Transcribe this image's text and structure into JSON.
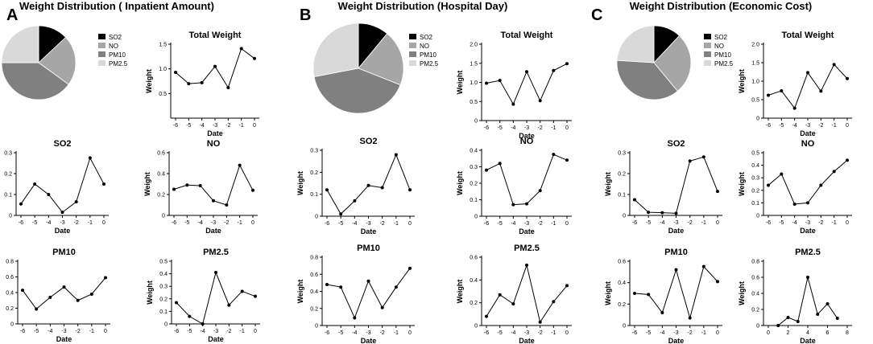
{
  "panels": [
    {
      "letter": "A",
      "title": "Weight Distribution ( Inpatient Amount)",
      "charts": [
        {
          "type": "pie",
          "labels": [
            "SO2",
            "NO",
            "PM10",
            "PM2.5"
          ],
          "values": [
            13,
            22,
            40,
            25
          ],
          "colors": [
            "#000000",
            "#a6a6a6",
            "#808080",
            "#d9d9d9"
          ]
        },
        {
          "type": "line",
          "title": "Total Weight",
          "xlabel": "Date",
          "ylabel": "Weight",
          "x": [
            -6,
            -5,
            -4,
            -3,
            -2,
            -1,
            0
          ],
          "y": [
            0.93,
            0.7,
            0.72,
            1.05,
            0.62,
            1.41,
            1.21
          ],
          "ylim": [
            0,
            1.5
          ],
          "yticks": [
            0.5,
            1.0,
            1.5
          ],
          "xticks": [
            -6,
            -5,
            -4,
            -3,
            -2,
            -1,
            0
          ]
        },
        {
          "type": "line",
          "title": "SO2",
          "xlabel": "Date",
          "ylabel": "Weight",
          "x": [
            -6,
            -5,
            -4,
            -3,
            -2,
            -1,
            0
          ],
          "y": [
            0.055,
            0.15,
            0.1,
            0.015,
            0.065,
            0.275,
            0.15
          ],
          "ylim": [
            0,
            0.3
          ],
          "yticks": [
            0.0,
            0.1,
            0.2,
            0.3
          ],
          "xticks": [
            -6,
            -5,
            -4,
            -3,
            -2,
            -1,
            0
          ]
        },
        {
          "type": "line",
          "title": "NO",
          "xlabel": "Date",
          "ylabel": "Weight",
          "x": [
            -6,
            -5,
            -4,
            -3,
            -2,
            -1,
            0
          ],
          "y": [
            0.25,
            0.29,
            0.285,
            0.14,
            0.1,
            0.48,
            0.24
          ],
          "ylim": [
            0,
            0.6
          ],
          "yticks": [
            0.0,
            0.2,
            0.4,
            0.6
          ],
          "xticks": [
            -6,
            -5,
            -4,
            -3,
            -2,
            -1,
            0
          ]
        },
        {
          "type": "line",
          "title": "PM10",
          "xlabel": "Date",
          "ylabel": "Weight",
          "x": [
            -6,
            -5,
            -4,
            -3,
            -2,
            -1,
            0
          ],
          "y": [
            0.43,
            0.19,
            0.34,
            0.47,
            0.3,
            0.38,
            0.59
          ],
          "ylim": [
            0,
            0.8
          ],
          "yticks": [
            0.0,
            0.2,
            0.4,
            0.6,
            0.8
          ],
          "xticks": [
            -6,
            -5,
            -4,
            -3,
            -2,
            -1,
            0
          ]
        },
        {
          "type": "line",
          "title": "PM2.5",
          "xlabel": "Date",
          "ylabel": "Weight",
          "x": [
            -6,
            -5,
            -4,
            -3,
            -2,
            -1,
            0
          ],
          "y": [
            0.17,
            0.06,
            0.0,
            0.41,
            0.15,
            0.26,
            0.22
          ],
          "ylim": [
            0,
            0.5
          ],
          "yticks": [
            0.0,
            0.1,
            0.2,
            0.3,
            0.4,
            0.5
          ],
          "xticks": [
            -6,
            -5,
            -4,
            -3,
            -2,
            -1,
            0
          ]
        }
      ]
    },
    {
      "letter": "B",
      "title": "Weight Distribution (Hospital Day)",
      "charts": [
        {
          "type": "pie",
          "labels": [
            "SO2",
            "NO",
            "PM10",
            "PM2.5"
          ],
          "values": [
            11,
            20,
            41,
            28
          ],
          "colors": [
            "#000000",
            "#a6a6a6",
            "#808080",
            "#d9d9d9"
          ]
        },
        {
          "type": "line",
          "title": "Total Weight",
          "xlabel": "Date",
          "ylabel": "Weight",
          "x": [
            -6,
            -5,
            -4,
            -3,
            -2,
            -1,
            0
          ],
          "y": [
            0.98,
            1.05,
            0.43,
            1.28,
            0.52,
            1.31,
            1.49
          ],
          "ylim": [
            0,
            2.0
          ],
          "yticks": [
            0.0,
            0.5,
            1.0,
            1.5,
            2.0
          ],
          "xticks": [
            -6,
            -5,
            -4,
            -3,
            -2,
            -1,
            0
          ]
        },
        {
          "type": "line",
          "title": "SO2",
          "xlabel": "Date",
          "ylabel": "Weight",
          "x": [
            -6,
            -5,
            -4,
            -3,
            -2,
            -1,
            0
          ],
          "y": [
            0.12,
            0.01,
            0.07,
            0.14,
            0.13,
            0.28,
            0.12
          ],
          "ylim": [
            0,
            0.3
          ],
          "yticks": [
            0.0,
            0.1,
            0.2,
            0.3
          ],
          "xticks": [
            -6,
            -5,
            -4,
            -3,
            -2,
            -1,
            0
          ]
        },
        {
          "type": "line",
          "title": "NO",
          "xlabel": "Date",
          "ylabel": "Weight",
          "x": [
            -6,
            -5,
            -4,
            -3,
            -2,
            -1,
            0
          ],
          "y": [
            0.28,
            0.32,
            0.07,
            0.075,
            0.155,
            0.375,
            0.34
          ],
          "ylim": [
            0,
            0.4
          ],
          "yticks": [
            0.0,
            0.1,
            0.2,
            0.3,
            0.4
          ],
          "xticks": [
            -6,
            -5,
            -4,
            -3,
            -2,
            -1,
            0
          ]
        },
        {
          "type": "line",
          "title": "PM10",
          "xlabel": "Date",
          "ylabel": "Weight",
          "x": [
            -6,
            -5,
            -4,
            -3,
            -2,
            -1,
            0
          ],
          "y": [
            0.48,
            0.45,
            0.09,
            0.52,
            0.21,
            0.45,
            0.67
          ],
          "ylim": [
            0,
            0.8
          ],
          "yticks": [
            0.0,
            0.2,
            0.4,
            0.6,
            0.8
          ],
          "xticks": [
            -6,
            -5,
            -4,
            -3,
            -2,
            -1,
            0
          ]
        },
        {
          "type": "line",
          "title": "PM2.5",
          "xlabel": "Date",
          "ylabel": "Weight",
          "x": [
            -6,
            -5,
            -4,
            -3,
            -2,
            -1,
            0
          ],
          "y": [
            0.08,
            0.27,
            0.19,
            0.53,
            0.03,
            0.21,
            0.35
          ],
          "ylim": [
            0,
            0.6
          ],
          "yticks": [
            0.0,
            0.2,
            0.4,
            0.6
          ],
          "xticks": [
            -6,
            -5,
            -4,
            -3,
            -2,
            -1,
            0
          ]
        }
      ]
    },
    {
      "letter": "C",
      "title": "Weight Distribution (Economic Cost)",
      "charts": [
        {
          "type": "pie",
          "labels": [
            "SO2",
            "NO",
            "PM10",
            "PM2.5"
          ],
          "values": [
            12,
            27,
            37,
            24
          ],
          "colors": [
            "#000000",
            "#a6a6a6",
            "#808080",
            "#d9d9d9"
          ]
        },
        {
          "type": "line",
          "title": "Total Weight",
          "xlabel": "Date",
          "ylabel": "Weight",
          "x": [
            -6,
            -5,
            -4,
            -3,
            -2,
            -1,
            0
          ],
          "y": [
            0.62,
            0.74,
            0.27,
            1.23,
            0.73,
            1.45,
            1.07
          ],
          "ylim": [
            0,
            2.0
          ],
          "yticks": [
            0.0,
            0.5,
            1.0,
            1.5,
            2.0
          ],
          "xticks": [
            -6,
            -5,
            -4,
            -3,
            -2,
            -1,
            0
          ]
        },
        {
          "type": "line",
          "title": "SO2",
          "xlabel": "Date",
          "ylabel": "Weight",
          "x": [
            -6,
            -5,
            -4,
            -3,
            -2,
            -1,
            0
          ],
          "y": [
            0.075,
            0.015,
            0.013,
            0.01,
            0.26,
            0.28,
            0.115
          ],
          "ylim": [
            0,
            0.3
          ],
          "yticks": [
            0.0,
            0.1,
            0.2,
            0.3
          ],
          "xticks": [
            -6,
            -5,
            -4,
            -3,
            -2,
            -1,
            0
          ]
        },
        {
          "type": "line",
          "title": "NO",
          "xlabel": "Date",
          "ylabel": "Weight",
          "x": [
            -6,
            -5,
            -4,
            -3,
            -2,
            -1,
            0
          ],
          "y": [
            0.24,
            0.33,
            0.09,
            0.1,
            0.24,
            0.35,
            0.44
          ],
          "ylim": [
            0,
            0.5
          ],
          "yticks": [
            0.0,
            0.1,
            0.2,
            0.3,
            0.4,
            0.5
          ],
          "xticks": [
            -6,
            -5,
            -4,
            -3,
            -2,
            -1,
            0
          ]
        },
        {
          "type": "line",
          "title": "PM10",
          "xlabel": "Date",
          "ylabel": "Weight",
          "x": [
            -6,
            -5,
            -4,
            -3,
            -2,
            -1,
            0
          ],
          "y": [
            0.3,
            0.29,
            0.12,
            0.52,
            0.07,
            0.55,
            0.41
          ],
          "ylim": [
            0,
            0.6
          ],
          "yticks": [
            0.0,
            0.2,
            0.4,
            0.6
          ],
          "xticks": [
            -6,
            -5,
            -4,
            -3,
            -2,
            -1,
            0
          ]
        },
        {
          "type": "line",
          "title": "PM2.5",
          "xlabel": "Date",
          "ylabel": "Weight",
          "x": [
            1,
            2,
            3,
            4,
            5,
            6,
            7
          ],
          "y": [
            0.0,
            0.1,
            0.05,
            0.6,
            0.14,
            0.27,
            0.09
          ],
          "ylim": [
            0,
            0.8
          ],
          "yticks": [
            0.0,
            0.2,
            0.4,
            0.6,
            0.8
          ],
          "xticks": [
            0,
            2,
            4,
            6,
            8
          ]
        }
      ]
    }
  ]
}
